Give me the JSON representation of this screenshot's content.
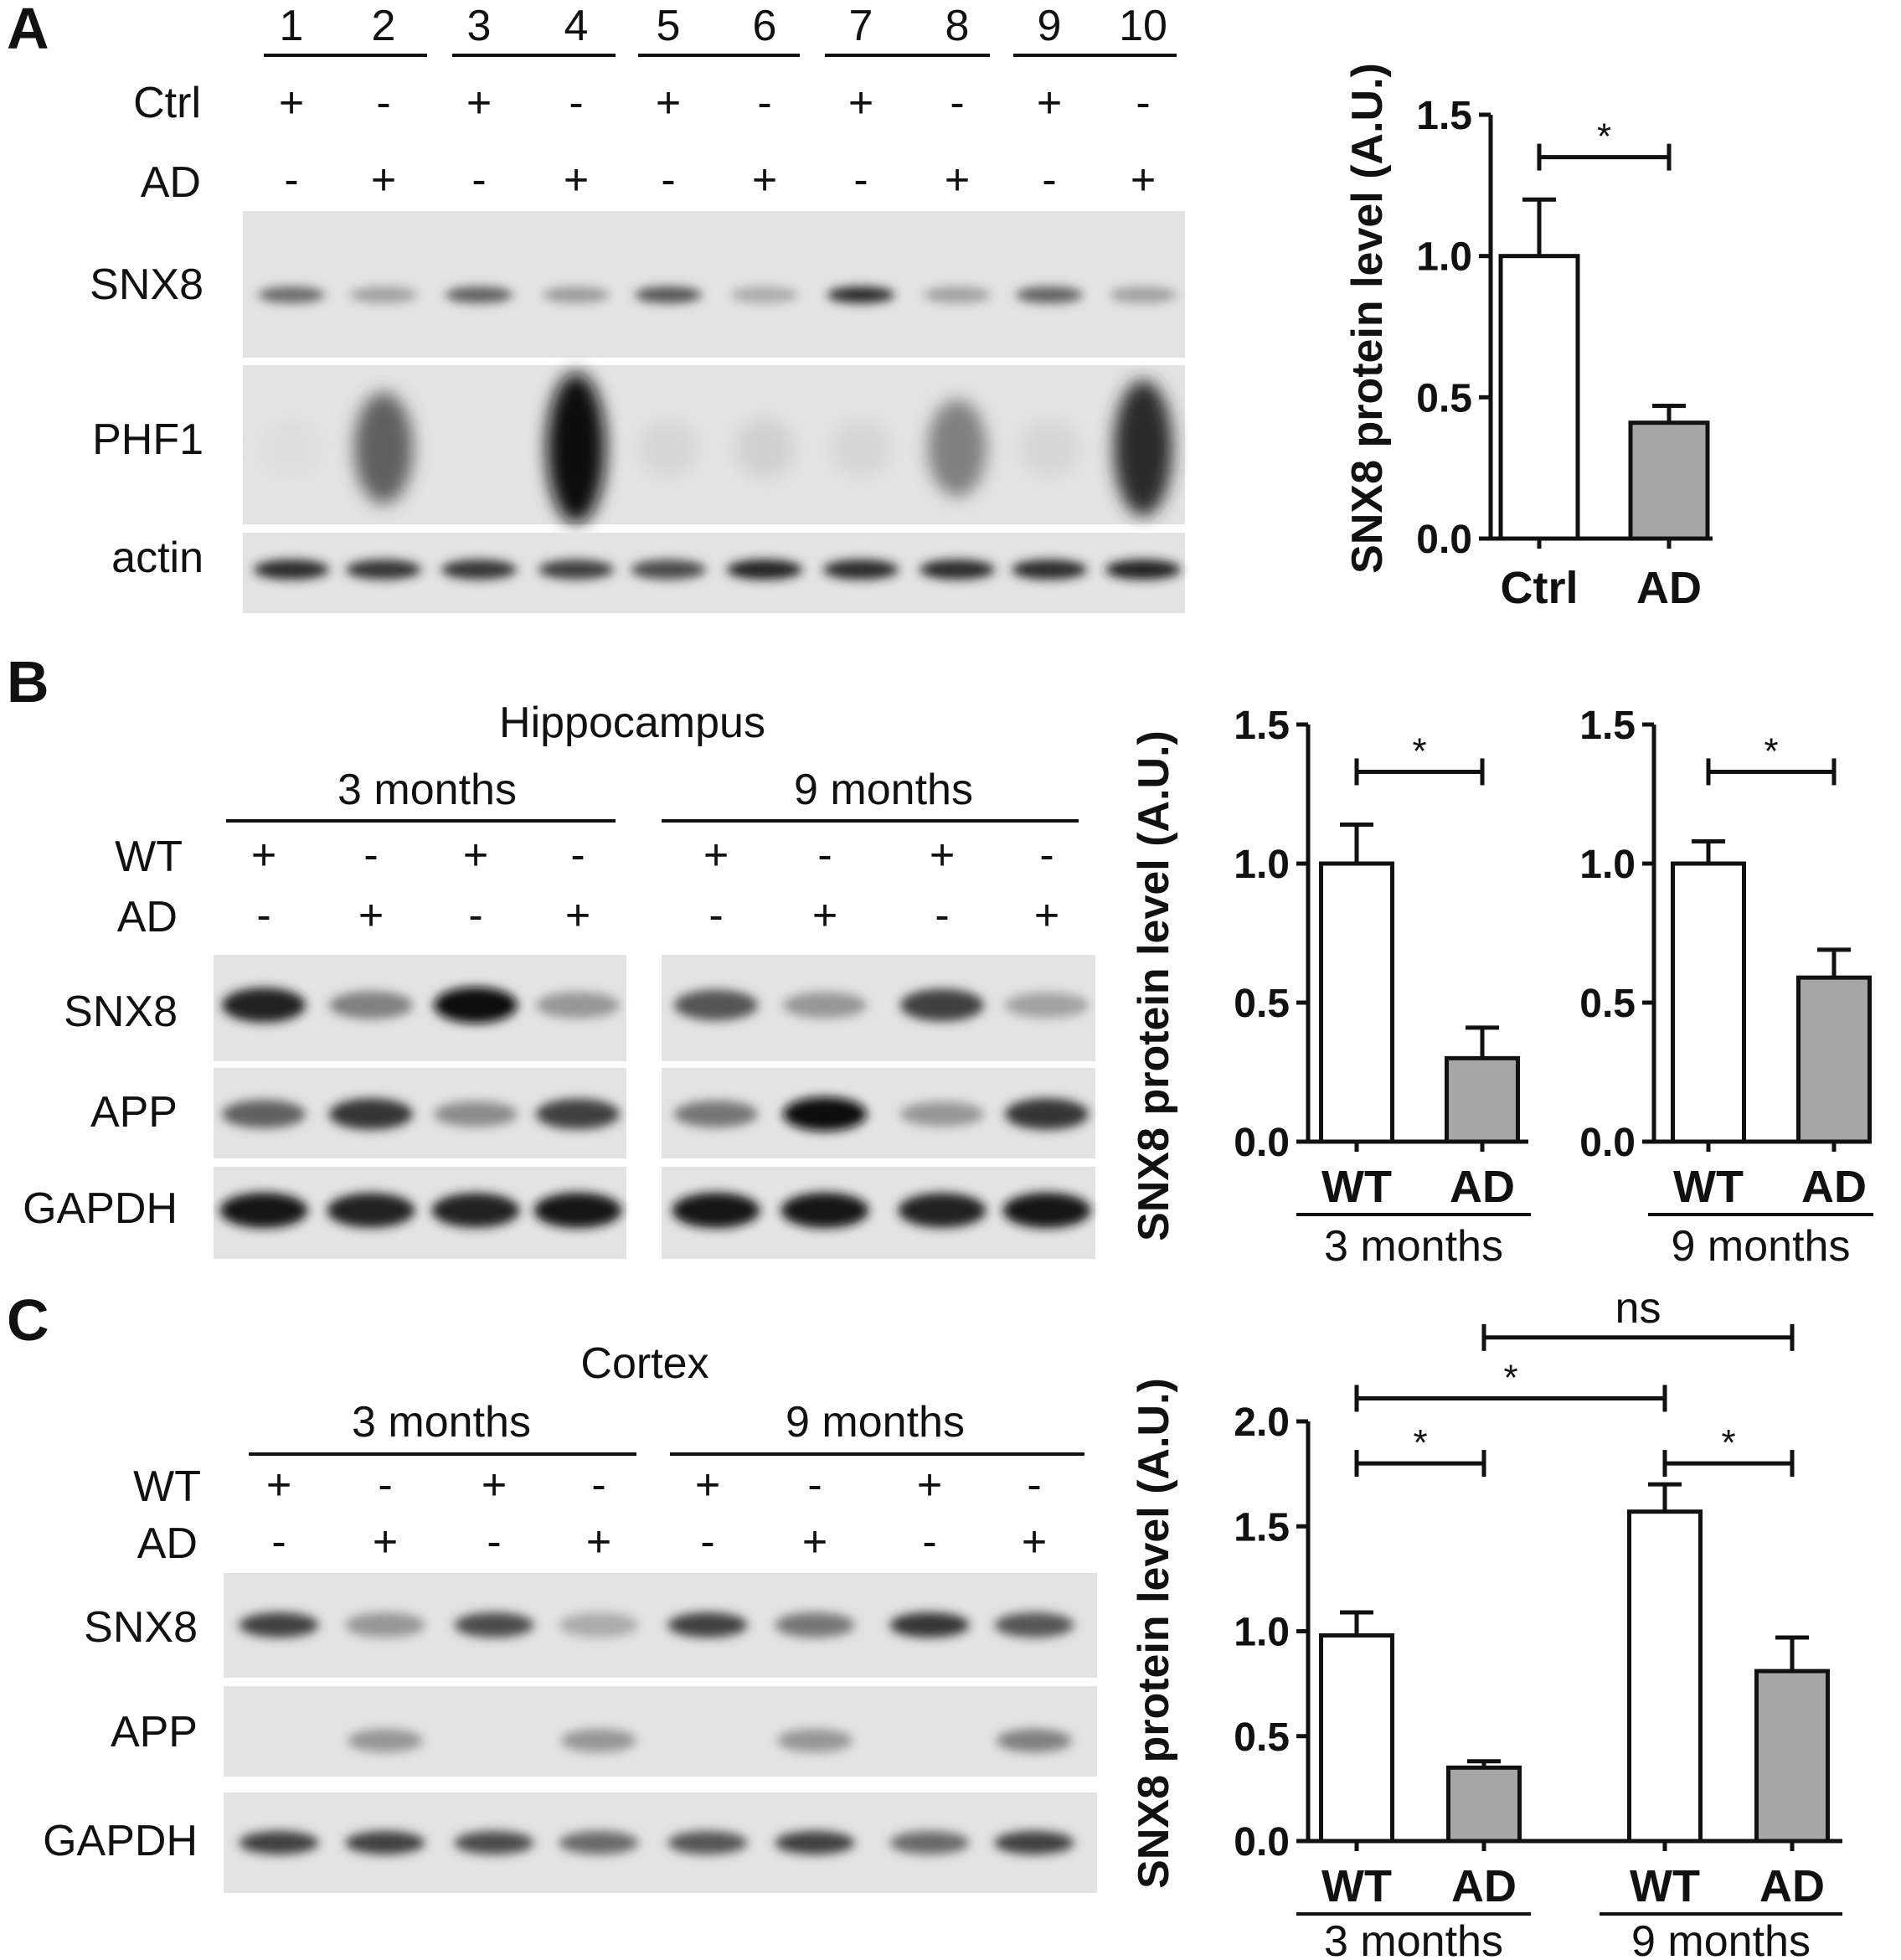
{
  "panel_a": {
    "panel_label": "A",
    "lane_numbers": [
      "1",
      "2",
      "3",
      "4",
      "5",
      "6",
      "7",
      "8",
      "9",
      "10"
    ],
    "row_labels": {
      "ctrl": "Ctrl",
      "ad": "AD"
    },
    "ctrl_signs": [
      "+",
      "-",
      "+",
      "-",
      "+",
      "-",
      "+",
      "-",
      "+",
      "-"
    ],
    "ad_signs": [
      "-",
      "+",
      "-",
      "+",
      "-",
      "+",
      "-",
      "+",
      "-",
      "+"
    ],
    "blot_labels": [
      "SNX8",
      "PHF1",
      "actin"
    ],
    "band_intensity": {
      "SNX8": [
        0.55,
        0.3,
        0.6,
        0.32,
        0.65,
        0.25,
        0.85,
        0.3,
        0.6,
        0.3
      ],
      "PHF1": [
        0.02,
        0.6,
        0.0,
        1.0,
        0.05,
        0.08,
        0.05,
        0.45,
        0.05,
        0.85
      ],
      "actin": [
        0.85,
        0.8,
        0.8,
        0.75,
        0.7,
        0.9,
        0.85,
        0.85,
        0.85,
        0.9
      ]
    }
  },
  "panel_b": {
    "panel_label": "B",
    "tissue": "Hippocampus",
    "groups": [
      "3 months",
      "9 months"
    ],
    "row_labels": {
      "wt": "WT",
      "ad": "AD"
    },
    "wt_signs": [
      "+",
      "-",
      "+",
      "-",
      "+",
      "-",
      "+",
      "-"
    ],
    "ad_signs": [
      "-",
      "+",
      "-",
      "+",
      "-",
      "+",
      "-",
      "+"
    ],
    "blot_labels": [
      "SNX8",
      "APP",
      "GAPDH"
    ],
    "band_intensity": {
      "SNX8": [
        0.9,
        0.45,
        1.0,
        0.35,
        0.65,
        0.35,
        0.75,
        0.3
      ],
      "APP": [
        0.6,
        0.8,
        0.4,
        0.75,
        0.5,
        1.0,
        0.35,
        0.8
      ],
      "GAPDH": [
        0.95,
        0.9,
        0.9,
        0.95,
        0.95,
        0.95,
        0.9,
        0.95
      ]
    }
  },
  "panel_c": {
    "panel_label": "C",
    "tissue": "Cortex",
    "groups": [
      "3 months",
      "9 months"
    ],
    "row_labels": {
      "wt": "WT",
      "ad": "AD"
    },
    "wt_signs": [
      "+",
      "-",
      "+",
      "-",
      "+",
      "-",
      "+",
      "-"
    ],
    "ad_signs": [
      "-",
      "+",
      "-",
      "+",
      "-",
      "+",
      "-",
      "+"
    ],
    "blot_labels": [
      "SNX8",
      "APP",
      "GAPDH"
    ],
    "band_intensity": {
      "SNX8": [
        0.75,
        0.35,
        0.7,
        0.25,
        0.75,
        0.5,
        0.8,
        0.65
      ],
      "APP": [
        0.0,
        0.35,
        0.0,
        0.35,
        0.0,
        0.35,
        0.0,
        0.45
      ],
      "GAPDH": [
        0.75,
        0.75,
        0.7,
        0.55,
        0.65,
        0.75,
        0.55,
        0.75
      ]
    }
  },
  "chart_data": [
    {
      "type": "bar",
      "panel": "A",
      "categories": [
        "Ctrl",
        "AD"
      ],
      "values": [
        1.0,
        0.41
      ],
      "errors": [
        0.2,
        0.06
      ],
      "colors": [
        "#ffffff",
        "#a6a6a6"
      ],
      "ylabel": "SNX8 protein level (A.U.)",
      "ylim": [
        0,
        1.5
      ],
      "yticks": [
        "0.0",
        "0.5",
        "1.0",
        "1.5"
      ],
      "xlabel": "",
      "group_label": "",
      "significance": [
        {
          "from": 0,
          "to": 1,
          "label": "*",
          "y": 1.35
        }
      ]
    },
    {
      "type": "bar",
      "panel": "B",
      "categories": [
        "WT",
        "AD"
      ],
      "values": [
        1.0,
        0.3
      ],
      "errors": [
        0.14,
        0.11
      ],
      "colors": [
        "#ffffff",
        "#a6a6a6"
      ],
      "ylabel": "SNX8 protein level (A.U.)",
      "ylim": [
        0,
        1.5
      ],
      "yticks": [
        "0.0",
        "0.5",
        "1.0",
        "1.5"
      ],
      "xlabel": "",
      "group_label": "3 months",
      "significance": [
        {
          "from": 0,
          "to": 1,
          "label": "*",
          "y": 1.33
        }
      ]
    },
    {
      "type": "bar",
      "panel": "B",
      "categories": [
        "WT",
        "AD"
      ],
      "values": [
        1.0,
        0.59
      ],
      "errors": [
        0.08,
        0.1
      ],
      "colors": [
        "#ffffff",
        "#a6a6a6"
      ],
      "ylabel": "",
      "ylim": [
        0,
        1.5
      ],
      "yticks": [
        "0.0",
        "0.5",
        "1.0",
        "1.5"
      ],
      "xlabel": "",
      "group_label": "9 months",
      "significance": [
        {
          "from": 0,
          "to": 1,
          "label": "*",
          "y": 1.33
        }
      ]
    },
    {
      "type": "bar",
      "panel": "C",
      "categories": [
        "WT",
        "AD",
        "WT",
        "AD"
      ],
      "values": [
        0.98,
        0.35,
        1.57,
        0.81
      ],
      "errors": [
        0.11,
        0.03,
        0.13,
        0.16
      ],
      "colors": [
        "#ffffff",
        "#a6a6a6",
        "#ffffff",
        "#a6a6a6"
      ],
      "ylabel": "SNX8 protein level (A.U.)",
      "ylim": [
        0,
        2.0
      ],
      "yticks": [
        "0.0",
        "0.5",
        "1.0",
        "1.5",
        "2.0"
      ],
      "xlabel": "",
      "group_labels": [
        "3 months",
        "9 months"
      ],
      "significance": [
        {
          "from": 0,
          "to": 1,
          "label": "*",
          "y": 1.8
        },
        {
          "from": 2,
          "to": 3,
          "label": "*",
          "y": 1.8
        },
        {
          "from": 0,
          "to": 2,
          "label": "*",
          "y": 2.11
        },
        {
          "from": 1,
          "to": 3,
          "label": "ns",
          "y": 2.4
        }
      ]
    }
  ]
}
